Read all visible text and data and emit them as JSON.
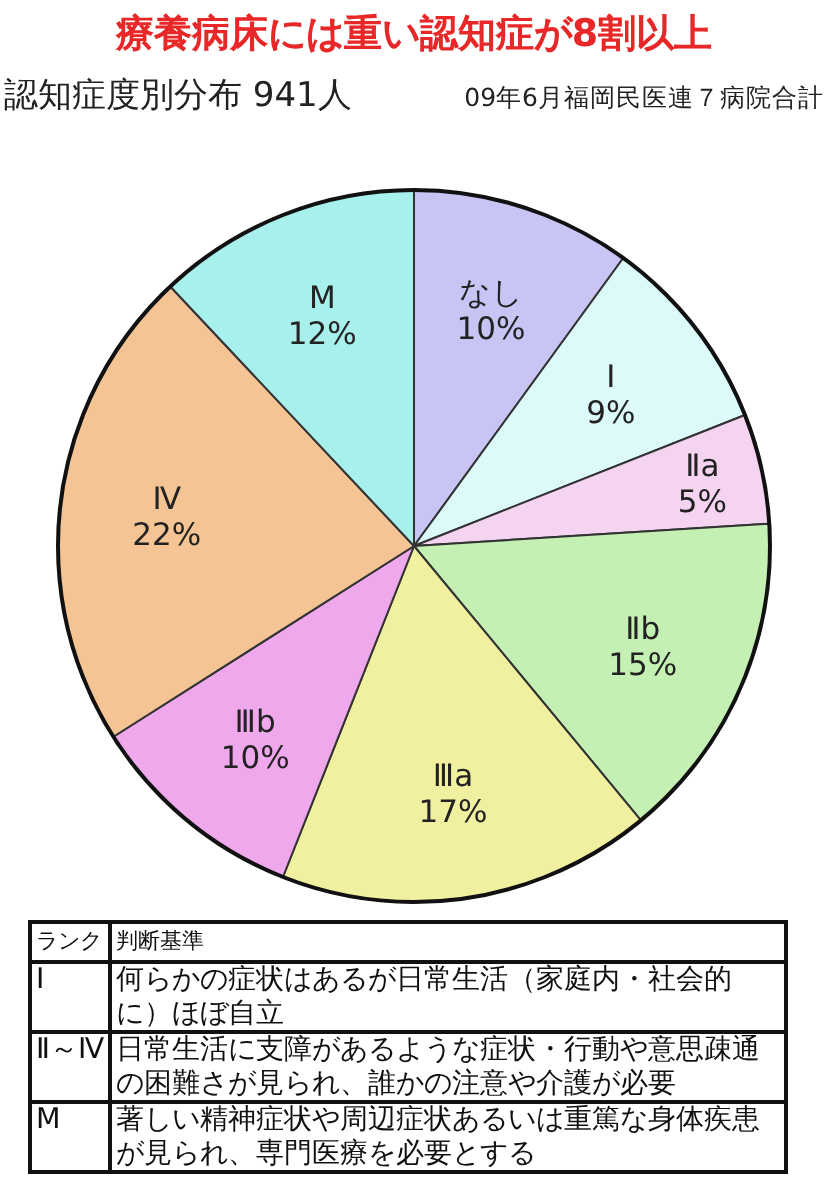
{
  "chart_data": {
    "type": "pie",
    "title": "療養病床には重い認知症が8割以上",
    "subtitle": "認知症度別分布 941人",
    "categories": [
      "なし",
      "Ⅰ",
      "Ⅱa",
      "Ⅱb",
      "Ⅲa",
      "Ⅲb",
      "Ⅳ",
      "M"
    ],
    "values": [
      10,
      9,
      5,
      15,
      17,
      10,
      22,
      12
    ],
    "value_labels": [
      "10%",
      "9%",
      "5%",
      "15%",
      "17%",
      "10%",
      "22%",
      "12%"
    ],
    "colors": [
      "#c8c4f4",
      "#dcfafa",
      "#f4d4f0",
      "#c4f0b4",
      "#f0f0a0",
      "#f0a8ec",
      "#f4c494",
      "#a8f0ec"
    ],
    "annotations": [
      "09年6月福岡民医連７病院合計",
      "ランク",
      "判断基準",
      "Ⅰ",
      "何らかの症状はあるが日常生活（家庭内・社会的に）ほぼ自立",
      "Ⅱ～Ⅳ",
      "日常生活に支障があるような症状・行動や意思疎通の困難さが見られ、誰かの注意や介護が必要",
      "M",
      "著しい精神症状や周辺症状あるいは重篤な身体疾患が見られ、専門医療を必要とする"
    ]
  }
}
